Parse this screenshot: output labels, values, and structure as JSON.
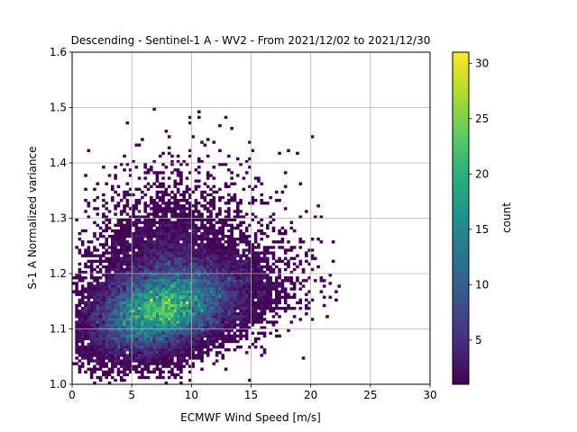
{
  "chart_data": {
    "type": "heatmap",
    "title": "Descending - Sentinel-1 A - WV2 - From 2021/12/02 to 2021/12/30",
    "xlabel": "ECMWF Wind Speed [m/s]",
    "ylabel": "S-1 A Normalized variance",
    "xlim": [
      0,
      30
    ],
    "ylim": [
      1.0,
      1.6
    ],
    "xticks": [
      "0",
      "5",
      "10",
      "15",
      "20",
      "25",
      "30"
    ],
    "yticks": [
      "1.0",
      "1.1",
      "1.2",
      "1.3",
      "1.4",
      "1.5",
      "1.6"
    ],
    "grid": true,
    "colormap": "viridis",
    "colorbar": {
      "label": "count",
      "range": [
        1,
        31
      ],
      "ticks": [
        "5",
        "10",
        "15",
        "20",
        "25",
        "30"
      ]
    },
    "bins": {
      "x_width": 0.25,
      "y_width": 0.005
    },
    "density_peak": {
      "x": 7.0,
      "y": 1.13,
      "count": 31
    }
  }
}
